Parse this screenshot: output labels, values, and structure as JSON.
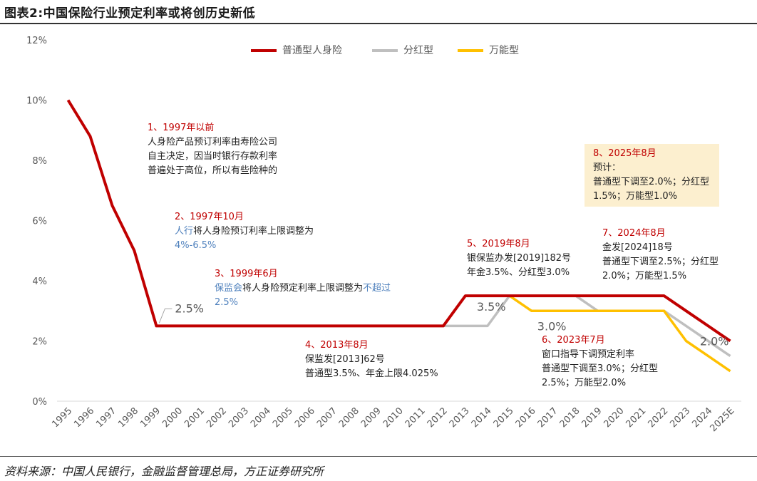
{
  "title": "图表2:中国保险行业预定利率或将创历史新低",
  "source": "资料来源：中国人民银行，金融监督管理总局，方正证券研究所",
  "colors": {
    "general": "#c00000",
    "participating": "#bfbfbf",
    "universal": "#ffc000",
    "grid_text": "#595959",
    "note_box": "#fcefcf"
  },
  "chart_data": {
    "type": "line",
    "categories": [
      "1995",
      "1996",
      "1997",
      "1998",
      "1999",
      "2000",
      "2001",
      "2002",
      "2003",
      "2004",
      "2005",
      "2006",
      "2007",
      "2008",
      "2009",
      "2010",
      "2011",
      "2012",
      "2013",
      "2014",
      "2015",
      "2016",
      "2017",
      "2018",
      "2019",
      "2020",
      "2021",
      "2022",
      "2023",
      "2024",
      "2025E"
    ],
    "y_ticks": [
      "0%",
      "2%",
      "4%",
      "6%",
      "8%",
      "10%",
      "12%"
    ],
    "ylim": [
      0,
      12
    ],
    "series": [
      {
        "name": "普通型人身险",
        "color": "#c00000",
        "values": [
          10.0,
          8.8,
          6.5,
          5.0,
          2.5,
          2.5,
          2.5,
          2.5,
          2.5,
          2.5,
          2.5,
          2.5,
          2.5,
          2.5,
          2.5,
          2.5,
          2.5,
          2.5,
          3.5,
          3.5,
          3.5,
          3.5,
          3.5,
          3.5,
          3.5,
          3.5,
          3.5,
          3.5,
          3.0,
          2.5,
          2.0
        ]
      },
      {
        "name": "分红型",
        "color": "#bfbfbf",
        "values": [
          null,
          null,
          null,
          null,
          null,
          null,
          null,
          null,
          null,
          null,
          null,
          null,
          null,
          null,
          null,
          null,
          null,
          2.5,
          2.5,
          2.5,
          3.5,
          3.5,
          3.5,
          3.5,
          3.0,
          3.0,
          3.0,
          3.0,
          2.5,
          2.0,
          1.5
        ]
      },
      {
        "name": "万能型",
        "color": "#ffc000",
        "values": [
          null,
          null,
          null,
          null,
          null,
          null,
          null,
          null,
          null,
          null,
          null,
          null,
          null,
          null,
          null,
          null,
          null,
          null,
          null,
          null,
          3.5,
          3.0,
          3.0,
          3.0,
          3.0,
          3.0,
          3.0,
          3.0,
          2.0,
          1.5,
          1.0
        ]
      }
    ],
    "data_labels": [
      {
        "text": "2.5%",
        "category": "1999",
        "value": 2.5,
        "leader": true
      },
      {
        "text": "3.5%",
        "category": "2013",
        "value": 3.5
      },
      {
        "text": "3.0%",
        "category": "2016",
        "value": 3.0
      },
      {
        "text": "2.0%",
        "category": "2025E",
        "value": 2.0
      }
    ],
    "legend": "top"
  },
  "annotations": [
    {
      "head": "1、1997年以前",
      "lines": [
        [
          {
            "t": "人身险产品预订利率由寿险公司"
          }
        ],
        [
          {
            "t": "自主决定，因当时银行存款利率"
          }
        ],
        [
          {
            "t": "普遍处于高位，所以有些险种的"
          }
        ]
      ]
    },
    {
      "head": "2、1997年10月",
      "lines": [
        [
          {
            "t": "人行",
            "blue": true
          },
          {
            "t": "将人身险预订利率上限调整为"
          }
        ],
        [
          {
            "t": "4%-6.5%",
            "blue": true
          }
        ]
      ]
    },
    {
      "head": "3、1999年6月",
      "lines": [
        [
          {
            "t": "保监会",
            "blue": true
          },
          {
            "t": "将人身险预定利率上限调整为"
          },
          {
            "t": "不超过",
            "blue": true
          }
        ],
        [
          {
            "t": "2.5%",
            "blue": true
          }
        ]
      ]
    },
    {
      "head": "4、2013年8月",
      "lines": [
        [
          {
            "t": "保监发[2013]62号"
          }
        ],
        [
          {
            "t": "普通型3.5%、年金上限4.025%"
          }
        ]
      ]
    },
    {
      "head": "5、2019年8月",
      "lines": [
        [
          {
            "t": "银保监办发[2019]182号"
          }
        ],
        [
          {
            "t": "年金3.5%、分红型3.0%"
          }
        ]
      ]
    },
    {
      "head": "6、2023年7月",
      "lines": [
        [
          {
            "t": "窗口指导下调预定利率"
          }
        ],
        [
          {
            "t": "普通型下调至3.0%；分红型"
          }
        ],
        [
          {
            "t": "2.5%；万能型2.0%"
          }
        ]
      ]
    },
    {
      "head": "7、2024年8月",
      "lines": [
        [
          {
            "t": "金发[2024]18号"
          }
        ],
        [
          {
            "t": "普通型下调至2.5%；分红型"
          }
        ],
        [
          {
            "t": "2.0%；万能型1.5%"
          }
        ]
      ]
    },
    {
      "head": "8、2025年8月",
      "lines": [
        [
          {
            "t": "预计："
          }
        ],
        [
          {
            "t": "普通型下调至2.0%；分红型"
          }
        ],
        [
          {
            "t": "1.5%；万能型1.0%"
          }
        ]
      ]
    }
  ]
}
